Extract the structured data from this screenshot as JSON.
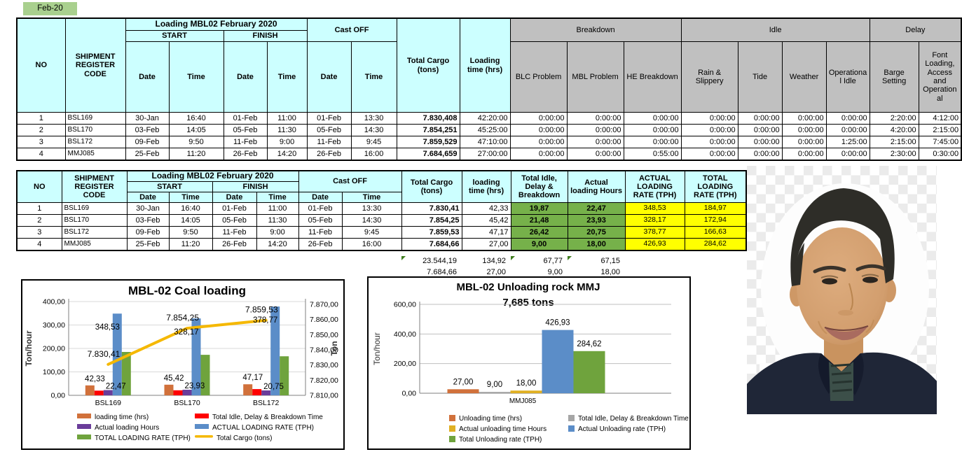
{
  "app": {
    "month_label": "Feb-20"
  },
  "colors": {
    "header_cyan": "#CCFFFF",
    "header_gray": "#C0C0C0",
    "cell_green": "#76B14A",
    "cell_yellow": "#FFFF00",
    "month_green": "#A9D08E"
  },
  "table1": {
    "group_title": "Loading MBL02 February 2020",
    "headers": {
      "no": "NO",
      "code": "SHIPMENT REGISTER CODE",
      "start": "START",
      "finish": "FINISH",
      "cast_off": "Cast OFF",
      "date": "Date",
      "time": "Time",
      "total_cargo": "Total Cargo (tons)",
      "loading_time": "Loading time (hrs)",
      "breakdown": "Breakdown",
      "idle": "Idle",
      "delay": "Delay",
      "blc": "BLC Problem",
      "mbl": "MBL Problem",
      "he": "HE Breakdown",
      "rain": "Rain & Slippery",
      "tide": "Tide",
      "weather": "Weather",
      "op_idle": "Operational Idle",
      "barge": "Barge Setting",
      "font_loading": "Font Loading, Access and Operational"
    },
    "rows": [
      {
        "no": "1",
        "code": "BSL169",
        "sd": "30-Jan",
        "st": "16:40",
        "fd": "01-Feb",
        "ft": "11:00",
        "cd": "01-Feb",
        "ct": "13:30",
        "cargo": "7.830,408",
        "lt": "42:20:00",
        "blc": "0:00:00",
        "mbl": "0:00:00",
        "he": "0:00:00",
        "rain": "0:00:00",
        "tide": "0:00:00",
        "weather": "0:00:00",
        "op_idle": "0:00:00",
        "barge": "2:20:00",
        "font": "4:12:00"
      },
      {
        "no": "2",
        "code": "BSL170",
        "sd": "03-Feb",
        "st": "14:05",
        "fd": "05-Feb",
        "ft": "11:30",
        "cd": "05-Feb",
        "ct": "14:30",
        "cargo": "7.854,251",
        "lt": "45:25:00",
        "blc": "0:00:00",
        "mbl": "0:00:00",
        "he": "0:00:00",
        "rain": "0:00:00",
        "tide": "0:00:00",
        "weather": "0:00:00",
        "op_idle": "0:00:00",
        "barge": "4:20:00",
        "font": "2:15:00"
      },
      {
        "no": "3",
        "code": "BSL172",
        "sd": "09-Feb",
        "st": "9:50",
        "fd": "11-Feb",
        "ft": "9:00",
        "cd": "11-Feb",
        "ct": "9:45",
        "cargo": "7.859,529",
        "lt": "47:10:00",
        "blc": "0:00:00",
        "mbl": "0:00:00",
        "he": "0:00:00",
        "rain": "0:00:00",
        "tide": "0:00:00",
        "weather": "0:00:00",
        "op_idle": "1:25:00",
        "barge": "2:15:00",
        "font": "7:45:00"
      },
      {
        "no": "4",
        "code": "MMJ085",
        "sd": "25-Feb",
        "st": "11:20",
        "fd": "26-Feb",
        "ft": "14:20",
        "cd": "26-Feb",
        "ct": "16:00",
        "cargo": "7.684,659",
        "lt": "27:00:00",
        "blc": "0:00:00",
        "mbl": "0:00:00",
        "he": "0:55:00",
        "rain": "0:00:00",
        "tide": "0:00:00",
        "weather": "0:00:00",
        "op_idle": "0:00:00",
        "barge": "2:30:00",
        "font": "0:30:00"
      }
    ]
  },
  "table2": {
    "group_title": "Loading MBL02 February 2020",
    "headers": {
      "no": "NO",
      "code": "SHIPMENT REGISTER CODE",
      "start": "START",
      "finish": "FINISH",
      "cast_off": "Cast OFF",
      "date": "Date",
      "time": "Time",
      "total_cargo": "Total Cargo (tons)",
      "loading_time": "loading time (hrs)",
      "idle": "Total Idle, Delay & Breakdown",
      "hours": "Actual loading Hours",
      "actual_rate": "ACTUAL LOADING RATE (TPH)",
      "total_rate": "TOTAL LOADING RATE (TPH)"
    },
    "rows": [
      {
        "no": "1",
        "code": "BSL169",
        "sd": "30-Jan",
        "st": "16:40",
        "fd": "01-Feb",
        "ft": "11:00",
        "cd": "01-Feb",
        "ct": "13:30",
        "cargo": "7.830,41",
        "lt": "42,33",
        "idle": "19,87",
        "hours": "22,47",
        "arate": "348,53",
        "trate": "184,97"
      },
      {
        "no": "2",
        "code": "BSL170",
        "sd": "03-Feb",
        "st": "14:05",
        "fd": "05-Feb",
        "ft": "11:30",
        "cd": "05-Feb",
        "ct": "14:30",
        "cargo": "7.854,25",
        "lt": "45,42",
        "idle": "21,48",
        "hours": "23,93",
        "arate": "328,17",
        "trate": "172,94"
      },
      {
        "no": "3",
        "code": "BSL172",
        "sd": "09-Feb",
        "st": "9:50",
        "fd": "11-Feb",
        "ft": "9:00",
        "cd": "11-Feb",
        "ct": "9:45",
        "cargo": "7.859,53",
        "lt": "47,17",
        "idle": "26,42",
        "hours": "20,75",
        "arate": "378,77",
        "trate": "166,63"
      },
      {
        "no": "4",
        "code": "MMJ085",
        "sd": "25-Feb",
        "st": "11:20",
        "fd": "26-Feb",
        "ft": "14:20",
        "cd": "26-Feb",
        "ct": "16:00",
        "cargo": "7.684,66",
        "lt": "27,00",
        "idle": "9,00",
        "hours": "18,00",
        "arate": "426,93",
        "trate": "284,62"
      }
    ],
    "totals": [
      [
        "23.544,19",
        "134,92",
        "67,77",
        "67,15"
      ],
      [
        "7.684,66",
        "27,00",
        "9,00",
        "18,00"
      ]
    ]
  },
  "chart_data": [
    {
      "type": "bar",
      "title": "MBL-02 Coal loading",
      "categories": [
        "BSL169",
        "BSL170",
        "BSL172"
      ],
      "ylabel_left": "Ton/hour",
      "ylabel_right": "Ton",
      "ylim_left": [
        0,
        400
      ],
      "ytick_labels_left": [
        "0,00",
        "100,00",
        "200,00",
        "300,00",
        "400,00"
      ],
      "ylim_right": [
        7810,
        7870
      ],
      "ytick_labels_right": [
        "7.810,00",
        "7.820,00",
        "7.830,00",
        "7.840,00",
        "7.850,00",
        "7.860,00",
        "7.870,00"
      ],
      "grid": true,
      "legend_position": "bottom",
      "series": [
        {
          "name": "loading time (hrs)",
          "color": "#D1713B",
          "values": [
            42.33,
            45.42,
            47.17
          ],
          "labels": [
            "42,33",
            "45,42",
            "47,17"
          ]
        },
        {
          "name": "Total Idle, Delay & Breakdown Time",
          "color": "#FF0000",
          "values": [
            19.87,
            21.48,
            26.42
          ],
          "labels": []
        },
        {
          "name": "Actual loading Hours",
          "color": "#6A3D9A",
          "values": [
            22.47,
            23.93,
            20.75
          ],
          "labels": [
            "22,47",
            "23,93",
            "20,75"
          ]
        },
        {
          "name": "ACTUAL LOADING RATE (TPH)",
          "color": "#5B8DC8",
          "values": [
            348.53,
            328.17,
            378.77
          ],
          "labels": [
            "348,53",
            "328,17",
            "378,77"
          ]
        },
        {
          "name": "TOTAL LOADING RATE (TPH)",
          "color": "#6FA33D",
          "values": [
            184.97,
            172.94,
            166.63
          ],
          "labels": []
        }
      ],
      "line": {
        "name": "Total Cargo (tons)",
        "color": "#F5B800",
        "axis": "right",
        "values": [
          7830.41,
          7854.25,
          7859.53
        ],
        "labels": [
          "7.830,41",
          "7.854,25",
          "7.859,53"
        ]
      }
    },
    {
      "type": "bar",
      "title": "MBL-02 Unloading rock MMJ",
      "subtitle": "7,685 tons",
      "categories": [
        "MMJ085"
      ],
      "ylabel": "Ton/hour",
      "ylim": [
        0,
        600
      ],
      "ytick_labels": [
        "0,00",
        "200,00",
        "400,00",
        "600,00"
      ],
      "grid": true,
      "legend_position": "bottom",
      "series": [
        {
          "name": "Unloading time (hrs)",
          "color": "#D1713B",
          "values": [
            27.0
          ],
          "labels": [
            "27,00"
          ]
        },
        {
          "name": "Total Idle, Delay & Breakdown Time",
          "color": "#A6A6A6",
          "values": [
            9.0
          ],
          "labels": [
            "9,00"
          ]
        },
        {
          "name": "Actual unloading time Hours",
          "color": "#E0B023",
          "values": [
            18.0
          ],
          "labels": [
            "18,00"
          ]
        },
        {
          "name": "Actual Unloading rate (TPH)",
          "color": "#5B8DC8",
          "values": [
            426.93
          ],
          "labels": [
            "426,93"
          ]
        },
        {
          "name": "Total Unloading rate  (TPH)",
          "color": "#6FA33D",
          "values": [
            284.62
          ],
          "labels": [
            "284,62"
          ]
        }
      ]
    }
  ]
}
